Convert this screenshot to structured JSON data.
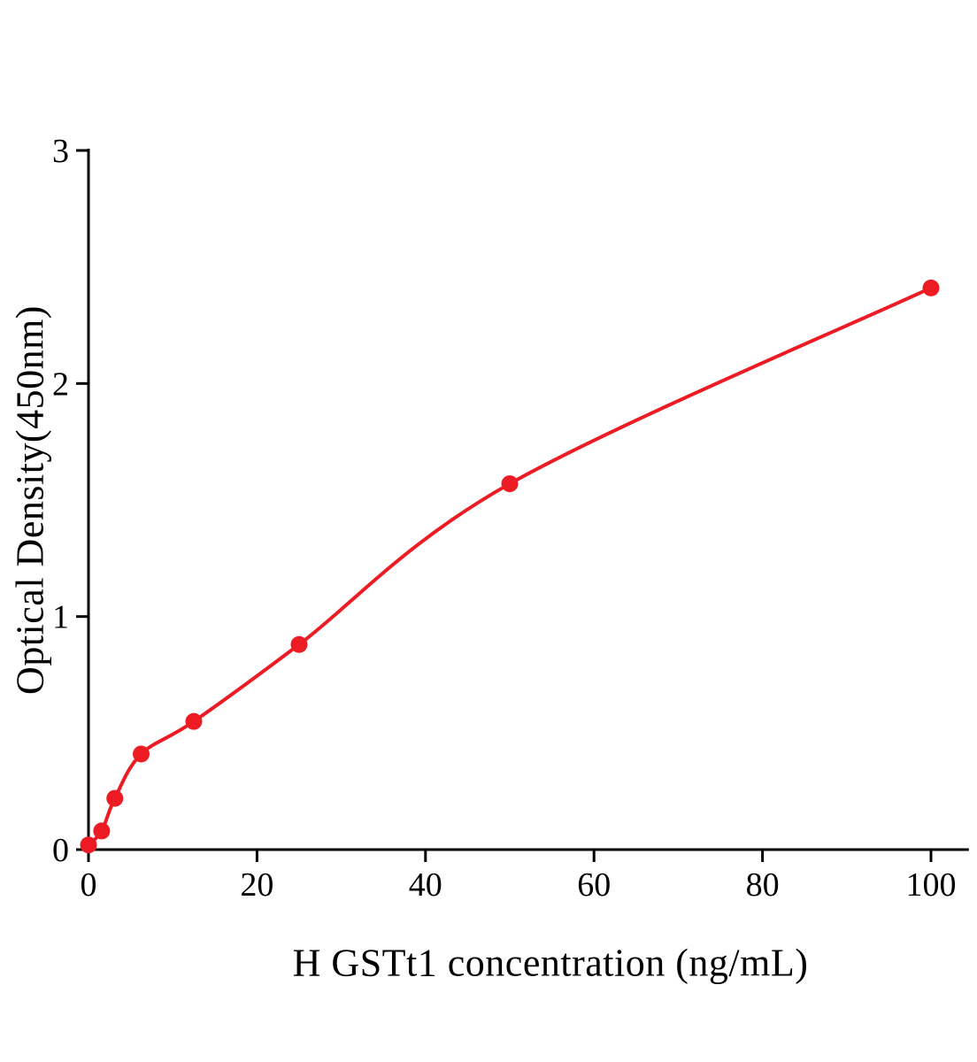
{
  "chart_data": {
    "type": "scatter",
    "title": "",
    "xlabel": "H GSTt1 concentration (ng/mL)",
    "ylabel": "Optical Density(450nm)",
    "x": [
      0,
      1.5625,
      3.125,
      6.25,
      12.5,
      25,
      50,
      100
    ],
    "y": [
      0.02,
      0.08,
      0.22,
      0.41,
      0.55,
      0.88,
      1.57,
      2.41
    ],
    "xticks": [
      0,
      20,
      40,
      60,
      80,
      100
    ],
    "yticks": [
      0,
      1,
      2,
      3
    ],
    "xlim": [
      0,
      104.5
    ],
    "ylim": [
      0,
      3
    ],
    "curve": "smooth fitted curve through data points",
    "point_color": "#ed1c24",
    "line_color": "#ed1c24",
    "axis_color": "#000000",
    "grid": false,
    "legend": "none"
  }
}
